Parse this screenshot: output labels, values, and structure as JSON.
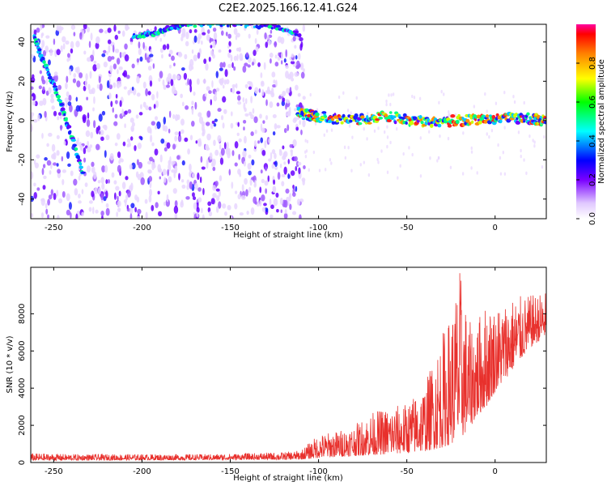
{
  "title": "C2E2.2025.166.12.41.G24",
  "chart_data": [
    {
      "type": "heatmap",
      "xlabel": "Height of straight line (km)",
      "ylabel": "Frequency (Hz)",
      "xlim": [
        -263,
        29
      ],
      "ylim": [
        -50,
        49
      ],
      "xticks": [
        -250,
        -200,
        -150,
        -100,
        -50,
        0
      ],
      "yticks": [
        -40,
        -20,
        0,
        20,
        40
      ],
      "tick_labels_x": [
        "-250",
        "-200",
        "-150",
        "-100",
        "-50",
        "0"
      ],
      "tick_labels_y": [
        "-40",
        "-20",
        "0",
        "20",
        "40"
      ],
      "colorbar": {
        "label": "Normalized spectral amplitude",
        "range": [
          0,
          1
        ],
        "ticks": [
          0.0,
          0.2,
          0.4,
          0.6,
          0.8
        ],
        "tick_labels": [
          "0.0",
          "0.2",
          "0.4",
          "0.6",
          "0.8"
        ]
      },
      "features": [
        {
          "name": "descending streak",
          "points": [
            [
              -261,
              42
            ],
            [
              -255,
              28
            ],
            [
              -248,
              14
            ],
            [
              -241,
              -5
            ],
            [
              -233,
              -28
            ]
          ]
        },
        {
          "name": "upper arc",
          "points": [
            [
              -205,
              43
            ],
            [
              -195,
              44
            ],
            [
              -185,
              47
            ],
            [
              -175,
              49
            ],
            [
              -150,
              49
            ],
            [
              -125,
              48
            ],
            [
              -110,
              44
            ]
          ]
        },
        {
          "name": "main trace",
          "points": [
            [
              -112,
              4
            ],
            [
              -100,
              2
            ],
            [
              -80,
              0
            ],
            [
              -60,
              2
            ],
            [
              -40,
              -1
            ],
            [
              -20,
              0
            ],
            [
              0,
              1
            ],
            [
              20,
              1
            ],
            [
              29,
              0
            ]
          ]
        }
      ]
    },
    {
      "type": "line",
      "xlabel": "Height of straight line (km)",
      "ylabel": "SNR (10 * v/v)",
      "xlim": [
        -263,
        29
      ],
      "ylim": [
        0,
        10500
      ],
      "xticks": [
        -250,
        -200,
        -150,
        -100,
        -50,
        0
      ],
      "yticks": [
        0,
        2000,
        4000,
        6000,
        8000
      ],
      "tick_labels_x": [
        "-250",
        "-200",
        "-150",
        "-100",
        "-50",
        "0"
      ],
      "tick_labels_y": [
        "0",
        "2000",
        "4000",
        "6000",
        "8000"
      ],
      "color": "#e8302c",
      "series": [
        {
          "x": [
            -263,
            -240,
            -220,
            -200,
            -180,
            -160,
            -140,
            -120,
            -110,
            -105,
            -100,
            -90,
            -80,
            -70,
            -60,
            -50,
            -40,
            -30,
            -25,
            -20,
            -15,
            -10,
            -5,
            0,
            10,
            20,
            29
          ],
          "low": [
            100,
            120,
            120,
            130,
            130,
            140,
            150,
            150,
            160,
            200,
            250,
            300,
            350,
            400,
            450,
            500,
            600,
            800,
            1000,
            1200,
            1800,
            2500,
            3000,
            3800,
            5000,
            6200,
            6800
          ],
          "high": [
            500,
            450,
            450,
            450,
            450,
            450,
            500,
            550,
            650,
            1100,
            1500,
            1700,
            2000,
            2700,
            3000,
            3200,
            4200,
            7000,
            8000,
            10500,
            7500,
            7800,
            8600,
            8400,
            8900,
            9000,
            9200
          ]
        }
      ]
    }
  ]
}
